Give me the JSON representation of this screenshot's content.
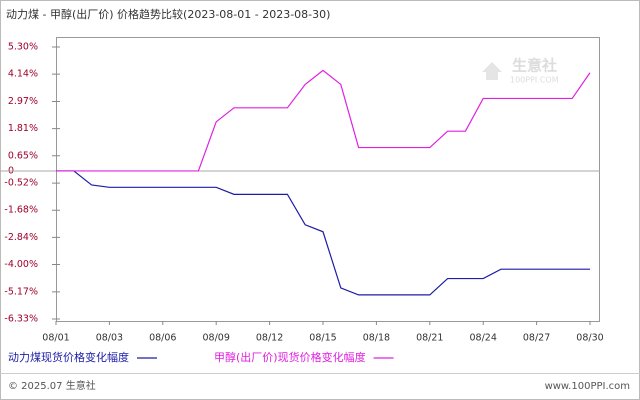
{
  "chart_data": {
    "type": "line",
    "title": "动力煤 - 甲醇(出厂价) 价格趋势比较(2023-08-01 - 2023-08-30)",
    "categories": [
      "08/01",
      null,
      null,
      "08/03",
      null,
      null,
      "08/06",
      null,
      null,
      "08/09",
      null,
      null,
      "08/12",
      null,
      null,
      "08/15",
      null,
      null,
      "08/18",
      null,
      null,
      "08/21",
      null,
      null,
      "08/24",
      null,
      null,
      "08/27",
      null,
      null,
      "08/30"
    ],
    "series": [
      {
        "name": "动力煤现货价格变化幅度",
        "color": "#1c1ca8",
        "values": [
          0,
          0,
          -0.6,
          -0.7,
          -0.7,
          -0.7,
          -0.7,
          -0.7,
          -0.7,
          -0.7,
          -1.0,
          -1.0,
          -1.0,
          -1.0,
          -2.3,
          -2.6,
          -5.0,
          -5.3,
          -5.3,
          -5.3,
          -5.3,
          -5.3,
          -4.6,
          -4.6,
          -4.6,
          -4.2,
          -4.2,
          -4.2,
          -4.2,
          -4.2,
          -4.2
        ]
      },
      {
        "name": "甲醇(出厂价)现货价格变化幅度",
        "color": "#e020e0",
        "values": [
          0,
          0,
          0,
          0,
          0,
          0,
          0,
          0,
          0,
          2.1,
          2.7,
          2.7,
          2.7,
          2.7,
          3.7,
          4.3,
          3.7,
          1.0,
          1.0,
          1.0,
          1.0,
          1.0,
          1.7,
          1.7,
          3.1,
          3.1,
          3.1,
          3.1,
          3.1,
          3.1,
          4.2
        ]
      }
    ],
    "ylim": [
      -6.33,
      5.3
    ],
    "yticks": [
      {
        "value": 5.3,
        "label": "5.30%"
      },
      {
        "value": 4.14,
        "label": "4.14%"
      },
      {
        "value": 2.97,
        "label": "2.97%"
      },
      {
        "value": 1.81,
        "label": "1.81%"
      },
      {
        "value": 0.65,
        "label": "0.65%"
      },
      0,
      {
        "value": -0.52,
        "label": "-0.52%"
      },
      {
        "value": -1.68,
        "label": "-1.68%"
      },
      {
        "value": -2.84,
        "label": "-2.84%"
      },
      {
        "value": -4.0,
        "label": "-4.00%"
      },
      {
        "value": -5.17,
        "label": "-5.17%"
      },
      {
        "value": -6.33,
        "label": "-6.33%"
      }
    ],
    "grid": false,
    "watermark": [
      "生意社",
      "100PPI.COM"
    ],
    "footer": [
      "© 2025.07 生意社",
      "www.100PPI.com"
    ]
  }
}
